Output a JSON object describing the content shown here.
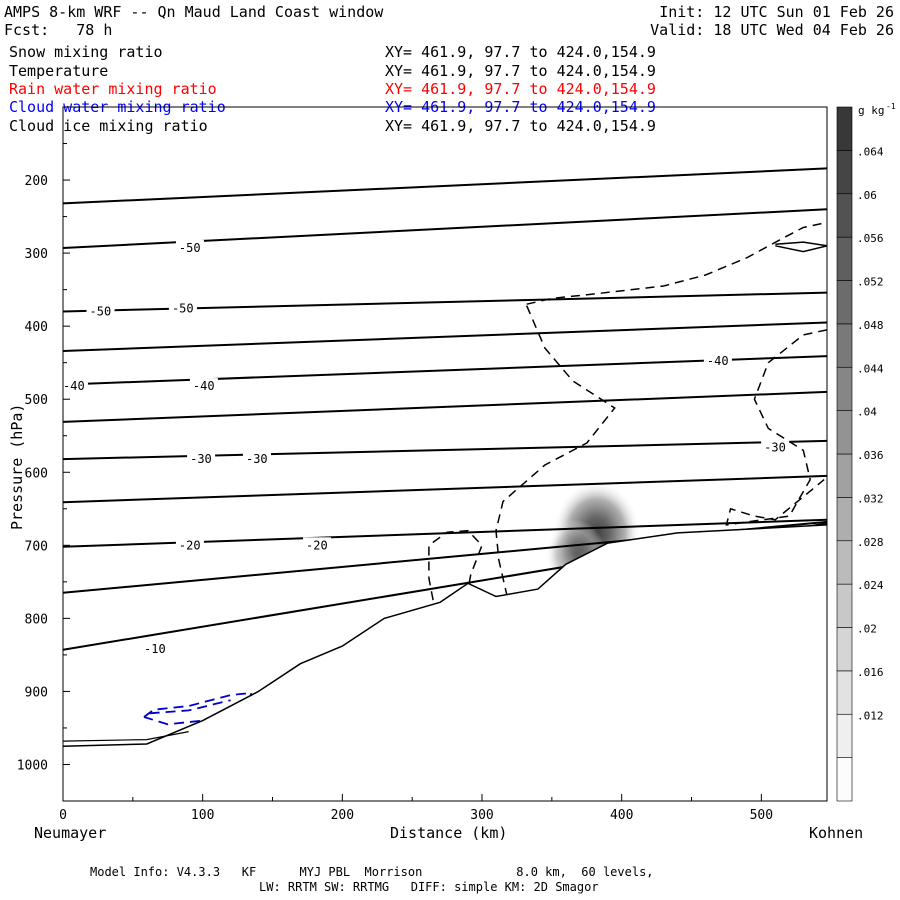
{
  "header": {
    "title": "AMPS 8-km WRF -- Qn Maud Land Coast window",
    "forecast": "Fcst:   78 h",
    "init": "Init: 12 UTC Sun 01 Feb 26",
    "valid": "Valid: 18 UTC Wed 04 Feb 26"
  },
  "legend": [
    {
      "label": "Snow mixing ratio",
      "xy": "XY= 461.9, 97.7 to 424.0,154.9",
      "color": "#000000"
    },
    {
      "label": "Temperature",
      "xy": "XY= 461.9, 97.7 to 424.0,154.9",
      "color": "#000000"
    },
    {
      "label": "Rain water mixing ratio",
      "xy": "XY= 461.9, 97.7 to 424.0,154.9",
      "color": "#ff0000"
    },
    {
      "label": "Cloud water mixing ratio",
      "xy": "XY= 461.9, 97.7 to 424.0,154.9",
      "color": "#0000ff"
    },
    {
      "label": "Cloud ice mixing ratio",
      "xy": "XY= 461.9, 97.7 to 424.0,154.9",
      "color": "#000000"
    }
  ],
  "footer": {
    "line1": "Model Info: V4.3.3   KF      MYJ PBL  Morrison             8.0 km,  60 levels,",
    "line2": "LW: RRTM SW: RRTMG   DIFF: simple KM: 2D Smagor"
  },
  "chart_data": {
    "type": "contour",
    "xlabel": "Distance (km)",
    "ylabel": "Pressure (hPa)",
    "xlim": [
      0,
      547
    ],
    "ylim": [
      1050,
      100
    ],
    "x_ticks": [
      0,
      100,
      200,
      300,
      400,
      500
    ],
    "y_ticks": [
      200,
      300,
      400,
      500,
      600,
      700,
      800,
      900,
      1000
    ],
    "x_end_labels": {
      "left": "Neumayer",
      "right": "Kohnen"
    },
    "colorbar": {
      "unit": "g kg",
      "unit_exp": "-1",
      "ticks": [
        ".012",
        ".016",
        ".02",
        ".024",
        ".028",
        ".032",
        ".036",
        ".04",
        ".044",
        ".048",
        ".052",
        ".056",
        ".06",
        ".064"
      ],
      "levels": 16
    },
    "temperature_labels": [
      {
        "text": "-50",
        "x": 83,
        "p": 293
      },
      {
        "text": "-50",
        "x": 19,
        "p": 380
      },
      {
        "text": "-50",
        "x": 78,
        "p": 376
      },
      {
        "text": "-40",
        "x": 0,
        "p": 482
      },
      {
        "text": "-40",
        "x": 93,
        "p": 482
      },
      {
        "text": "-40",
        "x": 461,
        "p": 448
      },
      {
        "text": "-30",
        "x": 91,
        "p": 582
      },
      {
        "text": "-30",
        "x": 131,
        "p": 582
      },
      {
        "text": "-30",
        "x": 502,
        "p": 566
      },
      {
        "text": "-20",
        "x": 83,
        "p": 700
      },
      {
        "text": "-20",
        "x": 174,
        "p": 700
      },
      {
        "text": "-10",
        "x": 58,
        "p": 842
      }
    ],
    "temperature_isotherms_hPa_at_ends": [
      [
        232,
        184
      ],
      [
        293,
        240
      ],
      [
        380,
        354
      ],
      [
        434,
        395
      ],
      [
        480,
        441
      ],
      [
        531,
        490
      ],
      [
        582,
        557
      ],
      [
        641,
        605
      ],
      [
        702,
        665
      ],
      [
        765,
        668
      ],
      [
        843,
        670
      ]
    ],
    "terrain_surface": [
      [
        0,
        975
      ],
      [
        60,
        972
      ],
      [
        100,
        940
      ],
      [
        140,
        900
      ],
      [
        170,
        862
      ],
      [
        200,
        838
      ],
      [
        230,
        800
      ],
      [
        270,
        778
      ],
      [
        290,
        752
      ],
      [
        310,
        770
      ],
      [
        340,
        760
      ],
      [
        360,
        726
      ],
      [
        390,
        697
      ],
      [
        440,
        683
      ],
      [
        547,
        672
      ]
    ],
    "snow_max": {
      "x": 382,
      "p": 688,
      "value": 0.064
    }
  }
}
